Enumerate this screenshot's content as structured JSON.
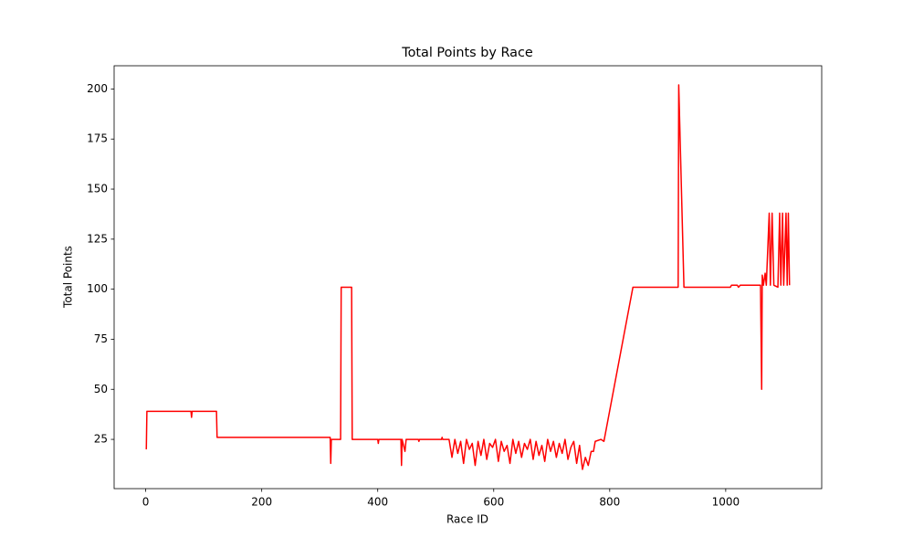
{
  "chart_data": {
    "type": "line",
    "title": "Total Points by Race",
    "x_label": "Race ID",
    "y_label": "Total Points",
    "color": "#ff0000",
    "x": [
      1,
      2,
      78,
      79,
      80,
      122,
      123,
      318,
      319,
      320,
      336,
      337,
      355,
      356,
      400,
      401,
      402,
      440,
      441,
      442,
      447,
      449,
      470,
      471,
      472,
      510,
      511,
      512,
      523,
      528,
      533,
      538,
      543,
      548,
      553,
      558,
      563,
      568,
      573,
      578,
      583,
      588,
      593,
      598,
      603,
      608,
      613,
      618,
      623,
      628,
      633,
      638,
      643,
      648,
      653,
      658,
      663,
      668,
      673,
      678,
      683,
      688,
      693,
      698,
      703,
      708,
      713,
      718,
      723,
      728,
      733,
      738,
      743,
      748,
      753,
      758,
      763,
      768,
      772,
      775,
      785,
      790,
      840,
      918,
      919,
      928,
      1008,
      1010,
      1020,
      1022,
      1025,
      1060,
      1062,
      1063,
      1065,
      1068,
      1070,
      1075,
      1077,
      1080,
      1083,
      1090,
      1093,
      1095,
      1098,
      1100,
      1104,
      1106,
      1108,
      1110
    ],
    "values": [
      20,
      39,
      39,
      36,
      39,
      39,
      26,
      26,
      13,
      25,
      25,
      101,
      101,
      25,
      25,
      23,
      25,
      25,
      12,
      25,
      19,
      25,
      25,
      24,
      25,
      25,
      26,
      25,
      25,
      16,
      25,
      18,
      24,
      13,
      25,
      20,
      23,
      12,
      24,
      17,
      25,
      15,
      23,
      21,
      25,
      14,
      24,
      19,
      22,
      13,
      25,
      18,
      24,
      16,
      23,
      20,
      25,
      15,
      24,
      17,
      22,
      14,
      25,
      19,
      24,
      16,
      23,
      18,
      25,
      15,
      21,
      24,
      13,
      22,
      10,
      16,
      12,
      19,
      19,
      24,
      25,
      24,
      101,
      101,
      202,
      101,
      101,
      102,
      102,
      101,
      102,
      102,
      50,
      107,
      102,
      108,
      102,
      138,
      102,
      138,
      102,
      101,
      138,
      102,
      138,
      102,
      138,
      102,
      138,
      102
    ],
    "xlim": [
      -54.5,
      1165.5
    ],
    "ylim": [
      0.4,
      211.6
    ],
    "xticks": [
      0,
      200,
      400,
      600,
      800,
      1000
    ],
    "yticks": [
      25,
      50,
      75,
      100,
      125,
      150,
      175,
      200
    ]
  }
}
